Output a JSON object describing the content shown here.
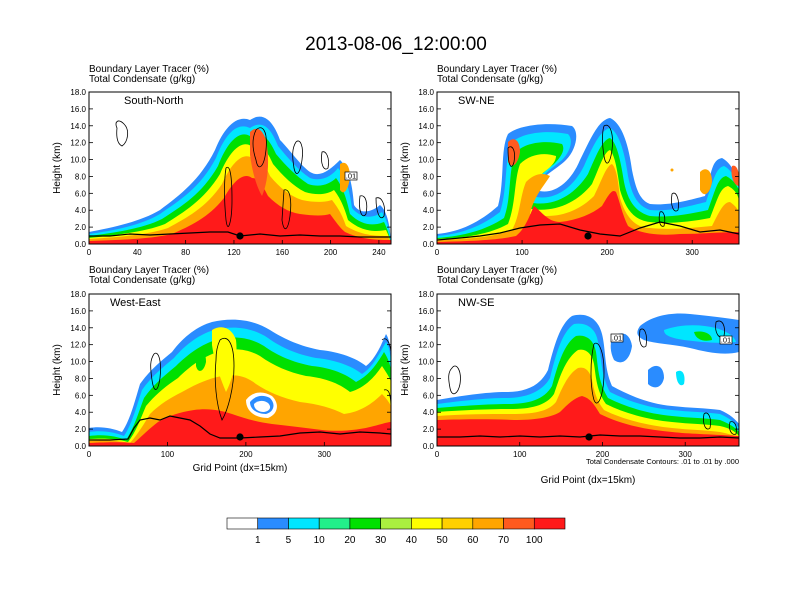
{
  "figure": {
    "title": "2013-08-06_12:00:00",
    "panel_header": {
      "line1": "Boundary Layer Tracer   (%)",
      "line2": "Total Condensate   (g/kg)"
    },
    "xlabel": "Grid Point (dx=15km)",
    "ylabel": "Height (km)",
    "contour_note": "Total Condensate Contours: .01 to .01 by .000"
  },
  "colors": {
    "white": "#ffffff",
    "blue": "#2a8cff",
    "cyan": "#00e6ff",
    "aqua": "#22f08a",
    "green": "#00e000",
    "lime": "#aaf040",
    "yellow": "#ffff00",
    "gold": "#ffd000",
    "orange": "#ffa500",
    "redorange": "#ff5a1e",
    "red": "#ff1a1a",
    "terrain": "#000000"
  },
  "colorbar": {
    "labels": [
      "1",
      "5",
      "10",
      "20",
      "30",
      "40",
      "50",
      "60",
      "70",
      "100"
    ],
    "colors": [
      "#ffffff",
      "#2a8cff",
      "#00e6ff",
      "#22f08a",
      "#00e000",
      "#aaf040",
      "#ffff00",
      "#ffd000",
      "#ffa500",
      "#ff5a1e",
      "#ff1a1a"
    ]
  },
  "chart_data": [
    {
      "type": "heatmap",
      "name": "South-North",
      "xlim": [
        0,
        250
      ],
      "ylim": [
        0,
        18
      ],
      "xticks": [
        "0",
        "40",
        "80",
        "120",
        "160",
        "200",
        "240"
      ],
      "yticks": [
        "0.0",
        "2.0",
        "4.0",
        "6.0",
        "8.0",
        "10.0",
        "12.0",
        "14.0",
        "16.0",
        "18.0"
      ],
      "contour_labels": [
        ".01"
      ]
    },
    {
      "type": "heatmap",
      "name": "SW-NE",
      "xlim": [
        0,
        355
      ],
      "ylim": [
        0,
        18
      ],
      "xticks": [
        "0",
        "100",
        "200",
        "300"
      ],
      "yticks": [
        "0.0",
        "2.0",
        "4.0",
        "6.0",
        "8.0",
        "10.0",
        "12.0",
        "14.0",
        "16.0",
        "18.0"
      ],
      "contour_labels": []
    },
    {
      "type": "heatmap",
      "name": "West-East",
      "xlim": [
        0,
        385
      ],
      "ylim": [
        0,
        18
      ],
      "xticks": [
        "0",
        "100",
        "200",
        "300"
      ],
      "yticks": [
        "0.0",
        "2.0",
        "4.0",
        "6.0",
        "8.0",
        "10.0",
        "12.0",
        "14.0",
        "16.0",
        "18.0"
      ],
      "contour_labels": []
    },
    {
      "type": "heatmap",
      "name": "NW-SE",
      "xlim": [
        0,
        365
      ],
      "ylim": [
        0,
        18
      ],
      "xticks": [
        "0",
        "100",
        "200",
        "300"
      ],
      "yticks": [
        "0.0",
        "2.0",
        "4.0",
        "6.0",
        "8.0",
        "10.0",
        "12.0",
        "14.0",
        "16.0",
        "18.0"
      ],
      "contour_labels": [
        ".01",
        ".01"
      ]
    }
  ]
}
